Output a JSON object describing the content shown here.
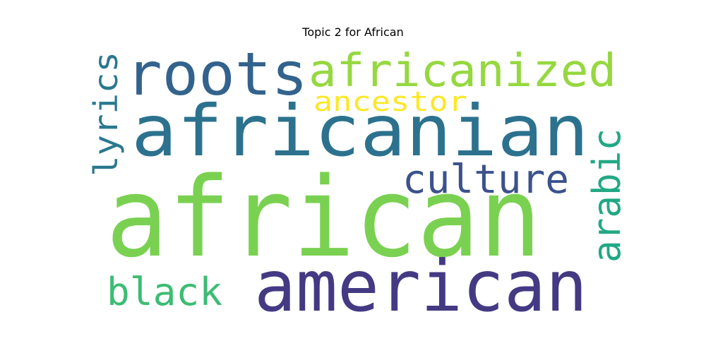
{
  "title": "Topic 2 for African",
  "words": [
    {
      "id": "african",
      "text": "african",
      "color": "#7ad151"
    },
    {
      "id": "africanian",
      "text": "africanian",
      "color": "#2c728e"
    },
    {
      "id": "american",
      "text": "american",
      "color": "#443983"
    },
    {
      "id": "roots",
      "text": "roots",
      "color": "#33638d"
    },
    {
      "id": "africanized",
      "text": "africanized",
      "color": "#95d840"
    },
    {
      "id": "culture",
      "text": "culture",
      "color": "#3b528b"
    },
    {
      "id": "arabic",
      "text": "arabic",
      "color": "#22a884"
    },
    {
      "id": "black",
      "text": "black",
      "color": "#3dbc74"
    },
    {
      "id": "lyrics",
      "text": "lyrics",
      "color": "#2a788e"
    },
    {
      "id": "ancestor",
      "text": "ancestor",
      "color": "#fde725"
    }
  ]
}
